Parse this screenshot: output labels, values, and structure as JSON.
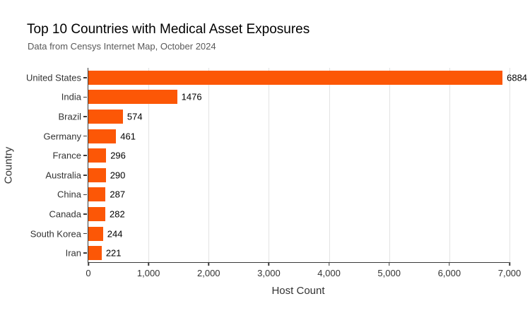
{
  "header": {
    "title": "Top 10 Countries with Medical Asset Exposures",
    "subtitle": "Data from Censys Internet Map, October 2024"
  },
  "chart_data": {
    "type": "bar",
    "orientation": "horizontal",
    "title": "Top 10 Countries with Medical Asset Exposures",
    "subtitle": "Data from Censys Internet Map, October 2024",
    "xlabel": "Host Count",
    "ylabel": "Country",
    "categories": [
      "United States",
      "India",
      "Brazil",
      "Germany",
      "France",
      "Australia",
      "China",
      "Canada",
      "South Korea",
      "Iran"
    ],
    "values": [
      6884,
      1476,
      574,
      461,
      296,
      290,
      287,
      282,
      244,
      221
    ],
    "value_labels": [
      "6884",
      "1476",
      "574",
      "461",
      "296",
      "290",
      "287",
      "282",
      "244",
      "221"
    ],
    "xlim": [
      0,
      7000
    ],
    "x_ticks": [
      0,
      1000,
      2000,
      3000,
      4000,
      5000,
      6000,
      7000
    ],
    "x_tick_labels": [
      "0",
      "1,000",
      "2,000",
      "3,000",
      "4,000",
      "5,000",
      "6,000",
      "7,000"
    ],
    "grid": true,
    "legend": false,
    "colors": {
      "bar": "#FC5706",
      "gridline": "#e3e3e3",
      "axis_line": "#3a3a3a",
      "title_text": "#000000",
      "subtitle_text": "#595959",
      "tick_text": "#333333",
      "value_text": "#000000",
      "background": "#ffffff"
    }
  }
}
